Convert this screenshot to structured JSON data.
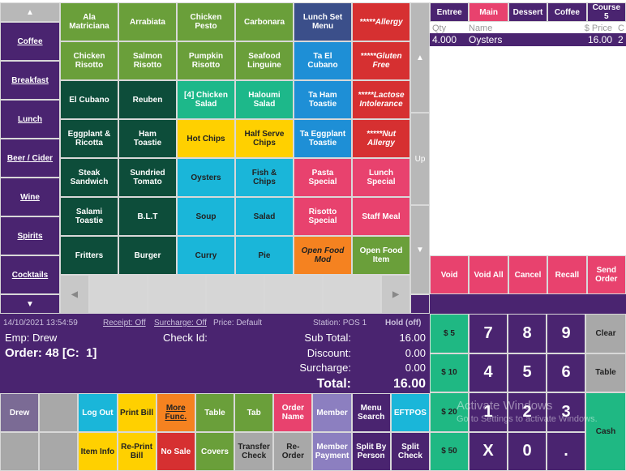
{
  "category_nav": {
    "up": "▲",
    "items": [
      "Coffee",
      "Breakfast",
      "Lunch",
      "Beer / Cider",
      "Wine",
      "Spirits",
      "Cocktails"
    ],
    "down": "▼"
  },
  "menu_grid": {
    "rows": [
      [
        "Ala Matriciana",
        "Arrabiata",
        "Chicken Pesto",
        "Carbonara",
        "Lunch Set Menu",
        "*****Allergy"
      ],
      [
        "Chicken Risotto",
        "Salmon Risotto",
        "Pumpkin Risotto",
        "Seafood Linguine",
        "Ta El Cubano",
        "*****Gluten Free"
      ],
      [
        "El Cubano",
        "Reuben",
        "[4] Chicken Salad",
        "Haloumi Salad",
        "Ta Ham Toastie",
        "*****Lactose Intolerance"
      ],
      [
        "Eggplant & Ricotta",
        "Ham Toastie",
        "Hot Chips",
        "Half Serve Chips",
        "Ta Eggplant Toastie",
        "*****Nut Allergy"
      ],
      [
        "Steak Sandwich",
        "Sundried Tomato",
        "Oysters",
        "Fish & Chips",
        "Pasta Special",
        "Lunch Special"
      ],
      [
        "Salami Toastie",
        "B.L.T",
        "Soup",
        "Salad",
        "Risotto Special",
        "Staff Meal"
      ],
      [
        "Fritters",
        "Burger",
        "Curry",
        "Pie",
        "Open Food Mod",
        "Open Food Item"
      ]
    ]
  },
  "menu_scroll": {
    "left": "◀",
    "right": "▶"
  },
  "order_scroll": {
    "up": "▲",
    "label": "Up",
    "down": "▼"
  },
  "course_tabs": [
    "Entree",
    "Main",
    "Dessert",
    "Coffee",
    "Course 5"
  ],
  "order_list": {
    "columns": [
      "Qty",
      "Name",
      "$ Price",
      "C"
    ],
    "rows": [
      [
        "4.000",
        "Oysters",
        "16.00",
        "2"
      ]
    ]
  },
  "order_actions": [
    "Void",
    "Void All",
    "Cancel",
    "Recall",
    "Send Order"
  ],
  "status": {
    "datetime": "14/10/2021 13:54:59",
    "receipt": "Receipt: Off",
    "surcharge_mode": "Surcharge: Off",
    "price": "Price: Default",
    "station": "Station: POS 1",
    "hold": "Hold (off)",
    "employee": "Emp: Drew",
    "check_id": "Check Id:",
    "order": "Order: 48 [C:  1]",
    "totals": [
      [
        "Sub Total:",
        "16.00"
      ],
      [
        "Discount:",
        "0.00"
      ],
      [
        "Surcharge:",
        "0.00"
      ],
      [
        "Total:",
        "16.00"
      ]
    ]
  },
  "numpad": {
    "cash": [
      "$ 5",
      "$ 10",
      "$ 20",
      "$ 50"
    ],
    "keys": [
      [
        "7",
        "8",
        "9"
      ],
      [
        "4",
        "5",
        "6"
      ],
      [
        "1",
        "2",
        "3"
      ],
      [
        "X",
        "0",
        "."
      ]
    ],
    "side": [
      "Clear",
      "Table",
      "Cash"
    ]
  },
  "function_buttons": {
    "rows": [
      [
        "Drew",
        "Log Out",
        "Print Bill",
        "More Func.",
        "Table",
        "Tab",
        "Order Name",
        "Member",
        "Menu Search",
        "EFTPOS"
      ],
      [
        "Item Info",
        "Re-Print Bill",
        "No Sale",
        "Covers",
        "Transfer Check",
        "Re-Order",
        "Member Payment",
        "Split By Person",
        "Split Check"
      ]
    ]
  },
  "watermark": {
    "title": "Activate Windows",
    "subtitle": "Go to Settings to activate Windows."
  }
}
